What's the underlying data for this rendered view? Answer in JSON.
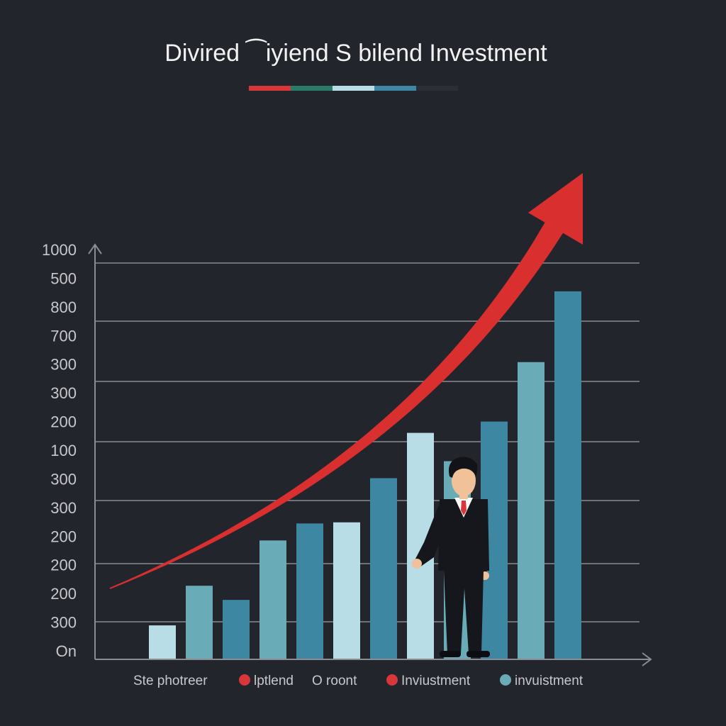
{
  "title": "Divired ⁀iyiend Ѕ bilend Investment",
  "title_bar_colors": [
    "#d9363a",
    "#2a7a6a",
    "#b9dde6",
    "#3d87a3",
    "#2b2e36"
  ],
  "chart_data": {
    "type": "bar",
    "title": "Divired ⁀iyiend Ѕ bilend Investment",
    "xlabel": "",
    "ylabel": "",
    "y_tick_labels": [
      "1000",
      "500",
      "800",
      "700",
      "300",
      "300",
      "200",
      "100",
      "300",
      "300",
      "200",
      "200",
      "200",
      "300",
      "On"
    ],
    "values": [
      60,
      130,
      105,
      210,
      240,
      242,
      320,
      400,
      350,
      420,
      525,
      650
    ],
    "bar_colors": [
      "#b9dde6",
      "#6aabb8",
      "#3d87a3",
      "#6aabb8",
      "#3d87a3",
      "#b9dde6",
      "#3d87a3",
      "#b9dde6",
      "#6aabb8",
      "#3d87a3",
      "#6aabb8",
      "#3d87a3"
    ],
    "ylim": [
      0,
      700
    ],
    "grid": true,
    "trend_arrow_color": "#d9302f",
    "legend": [
      {
        "label": "Ste photreer",
        "marker": "none"
      },
      {
        "label": "lptlend",
        "marker": "dot",
        "color": "#d9363a"
      },
      {
        "label": "O roont",
        "marker": "none"
      },
      {
        "label": "Inviustment",
        "marker": "dot",
        "color": "#d9363a"
      },
      {
        "label": "invuistment",
        "marker": "dot",
        "color": "#6aabb8"
      }
    ]
  },
  "figure": {
    "suit": "#15171c",
    "shirt": "#ffffff",
    "tie": "#d9363a",
    "skin": "#f1c19a",
    "hair": "#111318"
  }
}
